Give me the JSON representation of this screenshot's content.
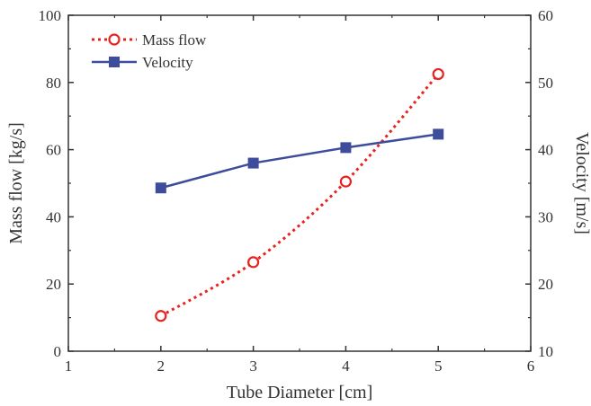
{
  "chart_data": {
    "type": "line",
    "xlabel": "Tube Diameter [cm]",
    "ylabel_left": "Mass flow [kg/s]",
    "ylabel_right": "Velocity [m/s]",
    "xlim": [
      1,
      6
    ],
    "ylim_left": [
      0,
      100
    ],
    "ylim_right": [
      10,
      60
    ],
    "x_ticks": [
      "1",
      "2",
      "3",
      "4",
      "5",
      "6"
    ],
    "y_left_ticks": [
      "0",
      "20",
      "40",
      "60",
      "80",
      "100"
    ],
    "y_right_ticks": [
      "10",
      "20",
      "30",
      "40",
      "50",
      "60"
    ],
    "grid": false,
    "legend_position": "top-left",
    "series": [
      {
        "name": "Mass flow",
        "axis": "left",
        "color": "#e8231f",
        "line_style": "dotted",
        "marker": "open-circle",
        "x": [
          2,
          3,
          4,
          5
        ],
        "values": [
          10.5,
          26.5,
          50.5,
          82.5
        ]
      },
      {
        "name": "Velocity",
        "axis": "right",
        "color": "#3d4d9c",
        "line_style": "solid",
        "marker": "filled-square",
        "x": [
          2,
          3,
          4,
          5
        ],
        "values": [
          34.3,
          38,
          40.3,
          42.3
        ]
      }
    ]
  }
}
